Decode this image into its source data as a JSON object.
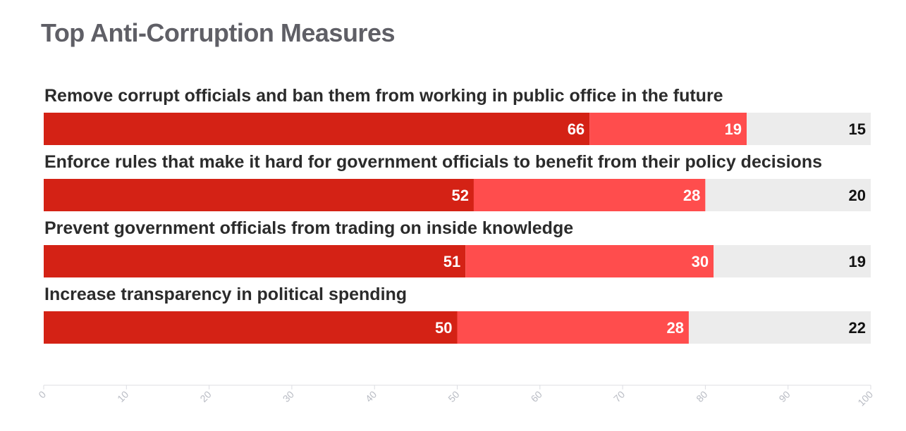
{
  "chart_data": {
    "type": "bar",
    "orientation": "horizontal",
    "stacked": true,
    "title": "Top Anti-Corruption Measures",
    "categories": [
      "Remove corrupt officials and ban them from working in public office in the future",
      "Enforce rules that make it hard for government officials to benefit from their policy decisions",
      "Prevent government officials from trading on inside knowledge",
      "Increase transparency in political spending"
    ],
    "series": [
      {
        "values": [
          66,
          52,
          51,
          50
        ],
        "color": "#d42215"
      },
      {
        "values": [
          19,
          28,
          30,
          28
        ],
        "color": "#ff4d4d"
      },
      {
        "values": [
          15,
          20,
          19,
          22
        ],
        "color": "#ececec"
      }
    ],
    "xlim": [
      0,
      100
    ],
    "xticks": [
      "0",
      "10",
      "20",
      "30",
      "40",
      "50",
      "60",
      "70",
      "80",
      "90",
      "100"
    ],
    "grid": false,
    "legend": "none"
  }
}
